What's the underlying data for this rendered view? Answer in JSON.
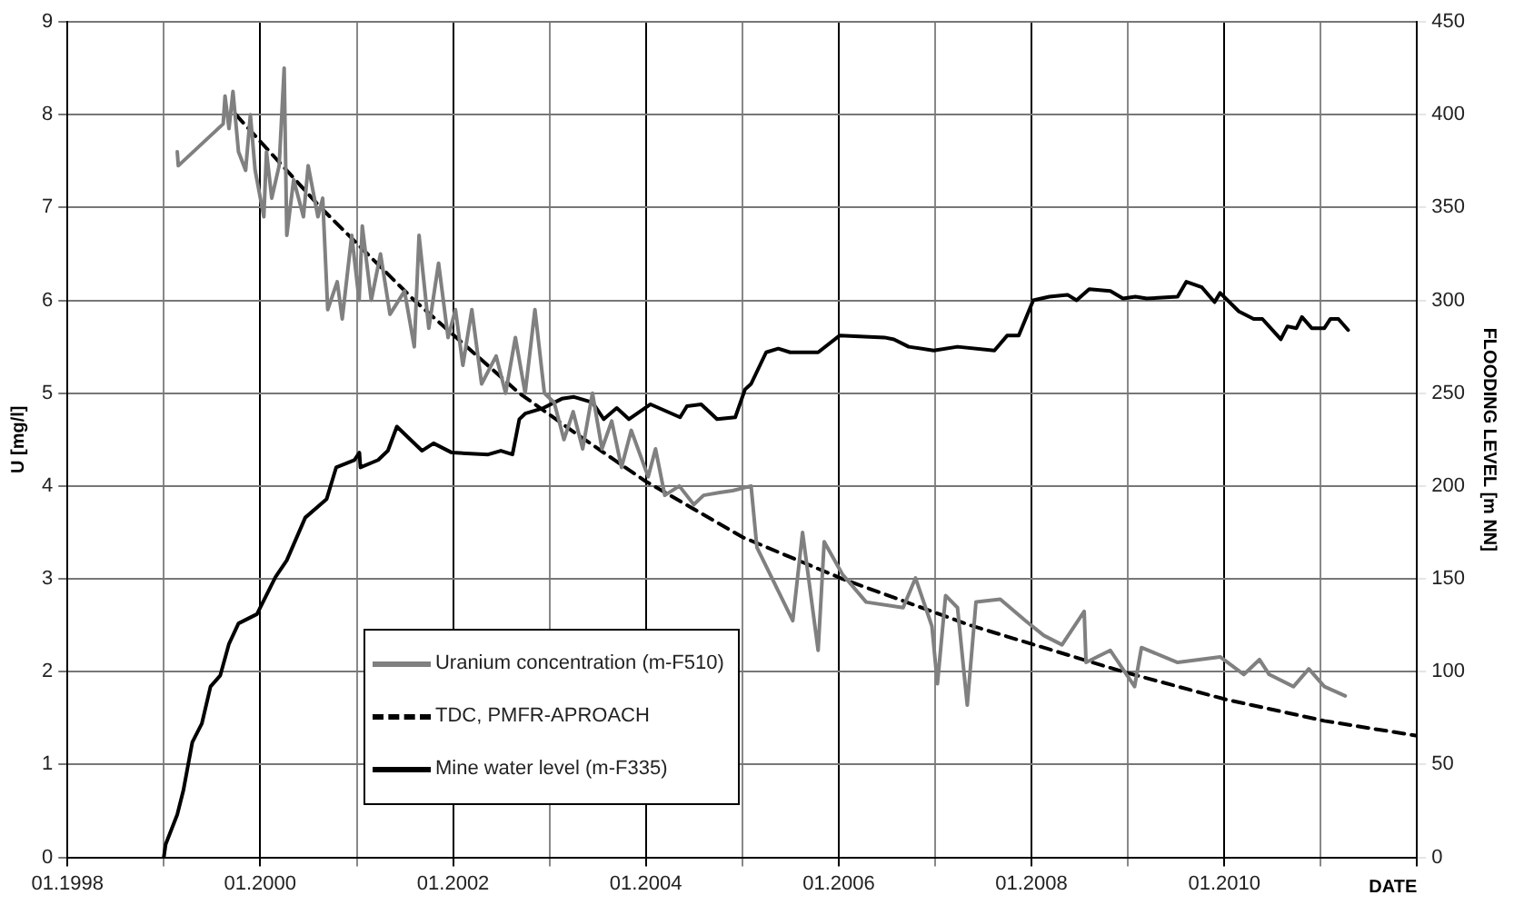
{
  "chart_data": {
    "type": "line",
    "xlabel": "DATE",
    "ylabel": "U [mg/l]",
    "y2label": "FLOODING LEVEL [m NN]",
    "xlim": [
      "1998-01",
      "2012-01"
    ],
    "xticks": [
      {
        "value": "1998-01",
        "label": "01.1998"
      },
      {
        "value": "1999-01",
        "label": null
      },
      {
        "value": "2000-01",
        "label": "01.2000"
      },
      {
        "value": "2001-01",
        "label": null
      },
      {
        "value": "2002-01",
        "label": "01.2002"
      },
      {
        "value": "2003-01",
        "label": null
      },
      {
        "value": "2004-01",
        "label": "01.2004"
      },
      {
        "value": "2005-01",
        "label": null
      },
      {
        "value": "2006-01",
        "label": "01.2006"
      },
      {
        "value": "2007-01",
        "label": null
      },
      {
        "value": "2008-01",
        "label": "01.2008"
      },
      {
        "value": "2009-01",
        "label": null
      },
      {
        "value": "2010-01",
        "label": "01.2010"
      },
      {
        "value": "2011-01",
        "label": null
      },
      {
        "value": "2012-01",
        "label": null
      }
    ],
    "ylim": [
      0,
      9
    ],
    "yticks": [
      0,
      1,
      2,
      3,
      4,
      5,
      6,
      7,
      8,
      9
    ],
    "y2lim": [
      0,
      450
    ],
    "y2ticks": [
      0,
      50,
      100,
      150,
      200,
      250,
      300,
      350,
      400,
      450
    ],
    "grid": true,
    "legend": "bottom",
    "marker": "none",
    "series": [
      {
        "name": "Uranium concentration (m-F510)",
        "color": "#808080",
        "x": [
          "1999-02-21",
          "1999-02-25",
          "1999-08-14",
          "1999-08-21",
          "1999-09-05",
          "1999-09-20",
          "1999-10-11",
          "1999-11-07",
          "1999-11-25",
          "1999-12-13",
          "2000-01-15",
          "2000-01-25",
          "2000-02-14",
          "2000-03-13",
          "2000-04-01",
          "2000-04-11",
          "2000-05-07",
          "2000-06-13",
          "2000-07-01",
          "2000-08-07",
          "2000-08-25",
          "2000-09-13",
          "2000-10-19",
          "2000-11-07",
          "2000-12-13",
          "2001-01-10",
          "2001-01-22",
          "2001-02-25",
          "2001-04-01",
          "2001-05-07",
          "2001-07-01",
          "2001-08-07",
          "2001-08-25",
          "2001-10-01",
          "2001-11-07",
          "2001-12-13",
          "2002-01-10",
          "2002-02-07",
          "2002-03-13",
          "2002-04-19",
          "2002-06-13",
          "2002-07-19",
          "2002-08-25",
          "2002-10-01",
          "2002-11-07",
          "2002-12-13",
          "2003-01-19",
          "2003-02-25",
          "2003-04-01",
          "2003-05-07",
          "2003-06-13",
          "2003-07-19",
          "2003-08-25",
          "2003-10-01",
          "2003-11-07",
          "2004-01-10",
          "2004-02-07",
          "2004-03-13",
          "2004-05-07",
          "2004-07-01",
          "2004-08-07",
          "2004-10-08",
          "2004-11-25",
          "2005-02-03",
          "2005-02-25",
          "2005-07-11",
          "2005-08-17",
          "2005-10-15",
          "2005-11-07",
          "2006-01-15",
          "2006-04-15",
          "2006-09-02",
          "2006-10-19",
          "2006-12-20",
          "2007-01-10",
          "2007-02-10",
          "2007-03-27",
          "2007-05-03",
          "2007-06-05",
          "2007-09-05",
          "2007-12-09",
          "2008-02-17",
          "2008-04-26",
          "2008-07-19",
          "2008-07-26",
          "2008-10-26",
          "2009-01-26",
          "2009-02-21",
          "2009-07-08",
          "2009-12-16",
          "2010-03-16",
          "2010-05-14",
          "2010-06-20",
          "2010-09-20",
          "2010-11-17",
          "2011-01-15",
          "2011-04-04"
        ],
        "values": [
          7.6,
          7.45,
          7.9,
          8.2,
          7.85,
          8.25,
          7.6,
          7.4,
          8.0,
          7.4,
          6.9,
          7.6,
          7.1,
          7.45,
          8.5,
          6.7,
          7.3,
          6.9,
          7.45,
          6.9,
          7.1,
          5.9,
          6.2,
          5.8,
          6.7,
          6.0,
          6.8,
          6.0,
          6.5,
          5.85,
          6.1,
          5.5,
          6.7,
          5.7,
          6.4,
          5.6,
          5.9,
          5.3,
          5.9,
          5.1,
          5.4,
          5.0,
          5.6,
          5.0,
          5.9,
          5.0,
          4.9,
          4.5,
          4.8,
          4.4,
          5.0,
          4.4,
          4.7,
          4.2,
          4.6,
          4.1,
          4.4,
          3.9,
          4.0,
          3.8,
          3.9,
          3.93,
          3.95,
          4.0,
          3.34,
          2.55,
          3.5,
          2.23,
          3.4,
          3.05,
          2.75,
          2.69,
          3.01,
          2.49,
          1.87,
          2.82,
          2.69,
          1.64,
          2.75,
          2.78,
          2.55,
          2.39,
          2.29,
          2.65,
          2.1,
          2.23,
          1.84,
          2.26,
          2.1,
          2.16,
          1.97,
          2.13,
          1.97,
          1.84,
          2.03,
          1.84,
          1.74
        ]
      },
      {
        "name": "TDC, PMFR-APROACH",
        "color": "#000000",
        "line_style": "dashed",
        "x": [
          "1999-10-01",
          "2000-08-17",
          "2001-08-07",
          "2002-09-09",
          "2003-04-19",
          "2004-01-01",
          "2005-01-01",
          "2006-01-15",
          "2007-05-14",
          "2008-12-13",
          "2010-01-08",
          "2011-01-15",
          "2012-01-01"
        ],
        "values": [
          8.0,
          7.0,
          6.0,
          5.0,
          4.55,
          4.05,
          3.45,
          3.0,
          2.5,
          2.0,
          1.7,
          1.47,
          1.31
        ]
      },
      {
        "name": "Mine water level (m-F335)",
        "color": "#000000",
        "axis": "y2",
        "x": [
          "1999-01-01",
          "1999-01-08",
          "1999-02-21",
          "1999-03-16",
          "1999-04-19",
          "1999-05-25",
          "1999-06-27",
          "1999-08-03",
          "1999-09-05",
          "1999-10-11",
          "1999-12-20",
          "2000-02-28",
          "2000-04-11",
          "2000-06-20",
          "2000-09-09",
          "2000-10-15",
          "2000-12-23",
          "2001-01-11",
          "2001-01-15",
          "2001-03-23",
          "2001-04-29",
          "2001-06-02",
          "2001-09-05",
          "2001-10-19",
          "2001-12-27",
          "2002-05-14",
          "2002-07-01",
          "2002-08-14",
          "2002-09-09",
          "2002-10-01",
          "2002-12-09",
          "2003-02-17",
          "2003-04-04",
          "2003-06-13",
          "2003-07-26",
          "2003-09-13",
          "2003-10-29",
          "2004-01-19",
          "2004-05-10",
          "2004-06-05",
          "2004-07-29",
          "2004-09-27",
          "2004-12-05",
          "2005-01-11",
          "2005-02-03",
          "2005-04-01",
          "2005-05-17",
          "2005-07-01",
          "2005-10-15",
          "2006-01-04",
          "2006-06-23",
          "2006-07-29",
          "2006-09-23",
          "2006-12-27",
          "2007-03-27",
          "2007-08-14",
          "2007-10-01",
          "2007-11-14",
          "2008-01-08",
          "2008-03-09",
          "2008-05-17",
          "2008-06-20",
          "2008-08-07",
          "2008-10-26",
          "2008-12-13",
          "2009-01-29",
          "2009-03-13",
          "2009-07-08",
          "2009-08-10",
          "2009-10-08",
          "2009-11-25",
          "2009-12-16",
          "2010-02-25",
          "2010-04-22",
          "2010-05-25",
          "2010-08-03",
          "2010-08-28",
          "2010-10-01",
          "2010-10-22",
          "2010-11-28",
          "2011-01-15",
          "2011-02-07",
          "2011-03-09",
          "2011-04-15"
        ],
        "values": [
          0,
          7,
          23,
          36,
          62,
          72,
          92,
          98,
          115,
          126,
          131,
          151,
          160,
          183,
          193,
          210,
          214,
          218,
          210,
          214,
          219,
          232,
          219,
          223,
          218,
          217,
          219,
          217,
          236,
          239,
          242,
          247,
          248,
          245,
          236,
          242,
          236,
          244,
          237,
          243,
          244,
          236,
          237,
          252,
          255,
          272,
          274,
          272,
          272,
          281,
          280,
          279,
          275,
          273,
          275,
          273,
          281,
          281,
          300,
          302,
          303,
          300,
          306,
          305,
          301,
          302,
          301,
          302,
          310,
          307,
          299,
          304,
          294,
          290,
          290,
          279,
          286,
          285,
          291,
          285,
          285,
          290,
          290,
          284
        ]
      }
    ]
  }
}
